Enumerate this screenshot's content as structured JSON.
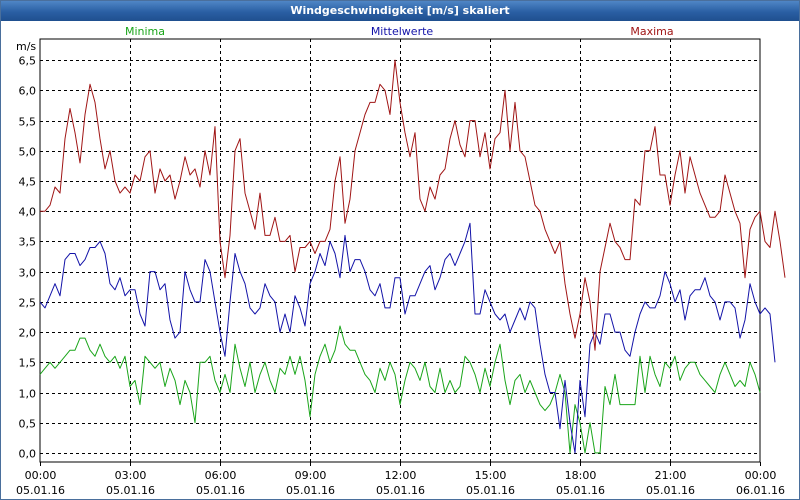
{
  "window": {
    "title": "Windgeschwindigkeit [m/s] skaliert"
  },
  "chart_data": {
    "type": "line",
    "title": "Windgeschwindigkeit [m/s] skaliert",
    "ylabel": "m/s",
    "ylim": [
      -0.15,
      6.85
    ],
    "xlim": [
      0,
      24
    ],
    "yticks": [
      {
        "value": 0.0,
        "label": "0,0"
      },
      {
        "value": 0.5,
        "label": "0,5"
      },
      {
        "value": 1.0,
        "label": "1,0"
      },
      {
        "value": 1.5,
        "label": "1,5"
      },
      {
        "value": 2.0,
        "label": "2,0"
      },
      {
        "value": 2.5,
        "label": "2,5"
      },
      {
        "value": 3.0,
        "label": "3,0"
      },
      {
        "value": 3.5,
        "label": "3,5"
      },
      {
        "value": 4.0,
        "label": "4,0"
      },
      {
        "value": 4.5,
        "label": "4,5"
      },
      {
        "value": 5.0,
        "label": "5,0"
      },
      {
        "value": 5.5,
        "label": "5,5"
      },
      {
        "value": 6.0,
        "label": "6,0"
      },
      {
        "value": 6.5,
        "label": "6,5"
      }
    ],
    "xticks": [
      {
        "value": 0,
        "time": "00:00",
        "date": "05.01.16"
      },
      {
        "value": 3,
        "time": "03:00",
        "date": "05.01.16"
      },
      {
        "value": 6,
        "time": "06:00",
        "date": "05.01.16"
      },
      {
        "value": 9,
        "time": "09:00",
        "date": "05.01.16"
      },
      {
        "value": 12,
        "time": "12:00",
        "date": "05.01.16"
      },
      {
        "value": 15,
        "time": "15:00",
        "date": "05.01.16"
      },
      {
        "value": 18,
        "time": "18:00",
        "date": "05.01.16"
      },
      {
        "value": 21,
        "time": "21:00",
        "date": "05.01.16"
      },
      {
        "value": 24,
        "time": "00:00",
        "date": "06.01.16"
      }
    ],
    "step_hours": 0.1666667,
    "series": [
      {
        "name": "Minima",
        "color": "#1aa51a",
        "legend_pos": "left",
        "values": [
          1.3,
          1.4,
          1.5,
          1.4,
          1.5,
          1.6,
          1.7,
          1.7,
          1.9,
          1.9,
          1.7,
          1.6,
          1.8,
          1.6,
          1.5,
          1.6,
          1.4,
          1.6,
          1.1,
          1.2,
          0.8,
          1.6,
          1.5,
          1.4,
          1.5,
          1.1,
          1.4,
          1.2,
          0.8,
          1.2,
          1.0,
          0.5,
          1.5,
          1.5,
          1.6,
          1.2,
          1.0,
          1.3,
          1.0,
          1.8,
          1.4,
          1.1,
          1.5,
          1.0,
          1.3,
          1.5,
          1.2,
          1.0,
          1.4,
          1.3,
          1.6,
          1.3,
          1.6,
          1.2,
          0.6,
          1.3,
          1.6,
          1.8,
          1.5,
          1.7,
          2.1,
          1.8,
          1.7,
          1.7,
          1.5,
          1.3,
          1.2,
          1.0,
          1.4,
          1.2,
          1.5,
          1.3,
          0.8,
          1.2,
          1.5,
          1.4,
          1.2,
          1.5,
          1.1,
          1.0,
          1.4,
          1.0,
          1.2,
          1.0,
          1.1,
          1.6,
          1.5,
          1.3,
          1.0,
          1.4,
          1.1,
          1.5,
          1.8,
          1.2,
          0.8,
          1.2,
          1.3,
          1.0,
          1.2,
          1.0,
          0.8,
          0.7,
          0.8,
          1.0,
          1.3,
          1.0,
          0.0,
          0.8,
          0.5,
          0.0,
          0.5,
          0.0,
          0.0,
          1.1,
          0.8,
          1.3,
          0.8,
          0.8,
          0.8,
          0.8,
          1.6,
          1.0,
          1.6,
          1.3,
          1.1,
          1.5,
          1.4,
          1.6,
          1.2,
          1.4,
          1.5,
          1.5,
          1.3,
          1.2,
          1.1,
          1.0,
          1.3,
          1.5,
          1.3,
          1.1,
          1.2,
          1.1,
          1.5,
          1.3,
          1.0
        ]
      },
      {
        "name": "Mittelwerte",
        "color": "#1313a8",
        "legend_pos": "center",
        "values": [
          2.5,
          2.4,
          2.6,
          2.8,
          2.6,
          3.2,
          3.3,
          3.3,
          3.1,
          3.2,
          3.4,
          3.4,
          3.5,
          3.3,
          2.8,
          2.7,
          2.9,
          2.6,
          2.7,
          2.7,
          2.3,
          2.1,
          3.0,
          3.0,
          2.7,
          2.8,
          2.2,
          1.9,
          2.0,
          3.0,
          2.7,
          2.5,
          2.5,
          3.2,
          3.0,
          2.5,
          2.0,
          1.6,
          2.5,
          3.3,
          3.0,
          2.8,
          2.4,
          2.3,
          2.4,
          2.8,
          2.6,
          2.5,
          2.0,
          2.3,
          2.0,
          2.6,
          2.4,
          2.1,
          2.8,
          3.0,
          3.3,
          3.1,
          3.5,
          3.3,
          2.9,
          3.6,
          3.0,
          3.2,
          3.2,
          3.0,
          2.7,
          2.6,
          2.8,
          2.4,
          2.4,
          2.9,
          2.9,
          2.3,
          2.6,
          2.6,
          2.8,
          3.0,
          3.1,
          2.7,
          2.9,
          3.2,
          3.3,
          3.1,
          3.3,
          3.5,
          3.8,
          2.3,
          2.3,
          2.7,
          2.5,
          2.3,
          2.2,
          2.3,
          2.0,
          2.2,
          2.4,
          2.2,
          2.5,
          2.4,
          1.8,
          1.3,
          1.0,
          1.0,
          0.4,
          1.2,
          0.5,
          0.0,
          1.2,
          0.6,
          1.8,
          2.0,
          1.8,
          2.3,
          2.3,
          2.0,
          2.0,
          1.7,
          1.6,
          2.0,
          2.3,
          2.5,
          2.4,
          2.4,
          2.6,
          3.0,
          2.8,
          2.5,
          2.7,
          2.2,
          2.6,
          2.7,
          2.7,
          2.9,
          2.6,
          2.5,
          2.2,
          2.5,
          2.5,
          2.4,
          1.9,
          2.2,
          2.8,
          2.5,
          2.3,
          2.4,
          2.3,
          1.5
        ]
      },
      {
        "name": "Maxima",
        "color": "#a01515",
        "legend_pos": "right",
        "values": [
          4.0,
          4.0,
          4.1,
          4.4,
          4.3,
          5.2,
          5.7,
          5.3,
          4.8,
          5.6,
          6.1,
          5.8,
          5.2,
          4.7,
          5.0,
          4.5,
          4.3,
          4.4,
          4.3,
          4.6,
          4.5,
          4.9,
          5.0,
          4.3,
          4.7,
          4.5,
          4.6,
          4.2,
          4.5,
          4.9,
          4.6,
          4.7,
          4.4,
          5.0,
          4.6,
          5.4,
          3.5,
          2.9,
          3.6,
          5.0,
          5.2,
          4.3,
          4.0,
          3.7,
          4.3,
          3.6,
          3.6,
          3.9,
          3.5,
          3.5,
          3.6,
          3.0,
          3.4,
          3.4,
          3.5,
          3.3,
          3.5,
          3.5,
          3.7,
          4.5,
          4.9,
          3.8,
          4.2,
          5.0,
          5.3,
          5.6,
          5.8,
          5.8,
          6.1,
          6.0,
          5.6,
          6.5,
          5.8,
          5.3,
          4.9,
          5.3,
          4.2,
          4.0,
          4.4,
          4.2,
          4.6,
          4.7,
          5.2,
          5.5,
          5.1,
          4.9,
          5.5,
          5.5,
          4.9,
          5.3,
          4.7,
          5.2,
          5.3,
          6.0,
          5.0,
          5.8,
          5.0,
          4.9,
          4.5,
          4.1,
          4.0,
          3.7,
          3.5,
          3.3,
          3.5,
          2.8,
          2.3,
          1.9,
          2.3,
          2.9,
          2.5,
          1.7,
          3.0,
          3.4,
          3.8,
          3.5,
          3.4,
          3.2,
          3.2,
          4.2,
          4.1,
          5.0,
          5.0,
          5.4,
          4.6,
          4.6,
          4.1,
          4.6,
          5.0,
          4.3,
          4.9,
          4.6,
          4.3,
          4.1,
          3.9,
          3.9,
          4.0,
          4.6,
          4.3,
          4.0,
          3.8,
          2.9,
          3.7,
          3.9,
          4.0,
          3.5,
          3.4,
          4.0,
          3.5,
          2.9
        ]
      }
    ]
  }
}
